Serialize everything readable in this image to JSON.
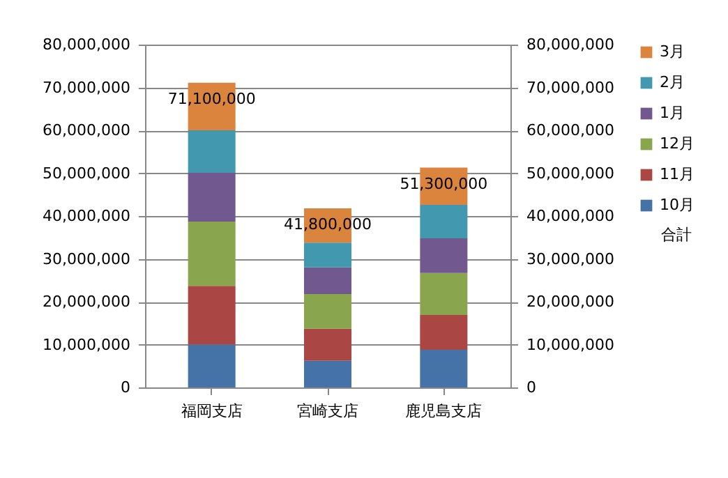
{
  "chart_data": {
    "type": "bar",
    "stacked": true,
    "categories": [
      "福岡支店",
      "宮崎支店",
      "鹿児島支店"
    ],
    "series": [
      {
        "name": "10月",
        "color": "#4572a7",
        "values": [
          10000000,
          6200000,
          8800000
        ]
      },
      {
        "name": "11月",
        "color": "#aa4643",
        "values": [
          13700000,
          7500000,
          8100000
        ]
      },
      {
        "name": "12月",
        "color": "#89a54e",
        "values": [
          15000000,
          8100000,
          9800000
        ]
      },
      {
        "name": "1月",
        "color": "#71588f",
        "values": [
          11400000,
          6200000,
          8100000
        ]
      },
      {
        "name": "2月",
        "color": "#4198af",
        "values": [
          9900000,
          5800000,
          7800000
        ]
      },
      {
        "name": "3月",
        "color": "#db843d",
        "values": [
          11100000,
          8000000,
          8700000
        ]
      }
    ],
    "totals": [
      "71,100,000",
      "41,800,000",
      "51,300,000"
    ],
    "annotations": [
      "合計"
    ],
    "ylim": [
      0,
      80000000
    ],
    "yticks": [
      0,
      {
        "value": 10000000,
        "label": "10,000,000"
      },
      {
        "value": 20000000,
        "label": "20,000,000"
      },
      {
        "value": 30000000,
        "label": "30,000,000"
      },
      {
        "value": 40000000,
        "label": "40,000,000"
      },
      {
        "value": 50000000,
        "label": "50,000,000"
      },
      {
        "value": 60000000,
        "label": "60,000,000"
      },
      {
        "value": 70000000,
        "label": "70,000,000"
      },
      {
        "value": 80000000,
        "label": "80,000,000"
      }
    ],
    "y2lim": [
      0,
      80000000
    ],
    "y2ticks": [
      0,
      {
        "value": 10000000,
        "label": "10,000,000"
      },
      {
        "value": 20000000,
        "label": "20,000,000"
      },
      {
        "value": 30000000,
        "label": "30,000,000"
      },
      {
        "value": 40000000,
        "label": "40,000,000"
      },
      {
        "value": 50000000,
        "label": "50,000,000"
      },
      {
        "value": 60000000,
        "label": "60,000,000"
      },
      {
        "value": 70000000,
        "label": "70,000,000"
      },
      {
        "value": 80000000,
        "label": "80,000,000"
      }
    ],
    "grid": "y",
    "legend": "right"
  }
}
